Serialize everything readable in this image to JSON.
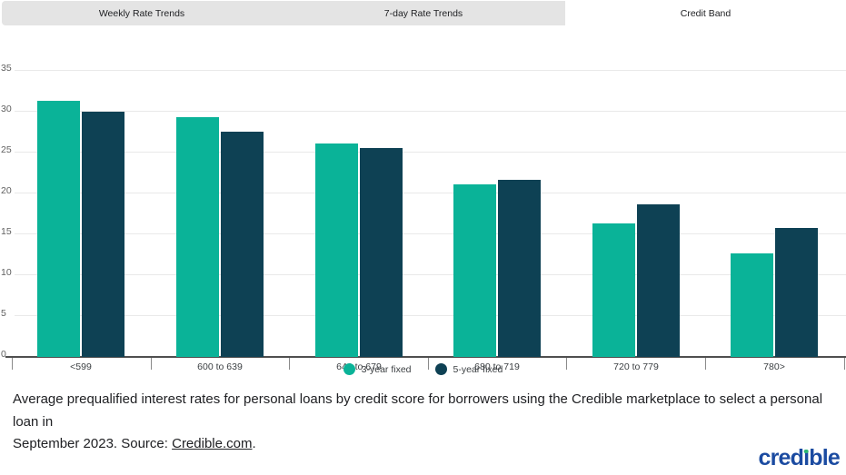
{
  "tab_bar": {
    "tabs": [
      {
        "label": "Weekly Rate Trends",
        "active": false
      },
      {
        "label": "7-day Rate Trends",
        "active": false
      },
      {
        "label": "Credit Band",
        "active": true
      }
    ]
  },
  "chart_data": {
    "type": "bar",
    "title": "",
    "categories": [
      "<599",
      "600 to 639",
      "640 to 679",
      "680 to 719",
      "720 to 779",
      "780>"
    ],
    "series": [
      {
        "name": "3-year fixed",
        "color": "#0ab398",
        "values": [
          31.3,
          29.3,
          26.1,
          21.1,
          16.3,
          12.7
        ]
      },
      {
        "name": "5-year fixed",
        "color": "#0e4154",
        "values": [
          30.0,
          27.6,
          25.5,
          21.7,
          18.7,
          15.8
        ]
      }
    ],
    "xlabel": "",
    "ylabel": "",
    "ylim": [
      0,
      35
    ],
    "yticks": [
      0,
      5,
      10,
      15,
      20,
      25,
      30,
      35
    ],
    "grid": true,
    "legend_position": "bottom"
  },
  "caption": {
    "line1": "Average prequalified interest rates for personal loans by credit score for borrowers using the Credible marketplace to select a personal loan in",
    "line2_prefix": "September 2023. Source: ",
    "link_text": "Credible.com",
    "suffix": "."
  },
  "logo": {
    "pre": "cred",
    "i": "ı",
    "post": "ble"
  },
  "colors": {
    "series_3yr": "#0ab398",
    "series_5yr": "#0e4154",
    "tab_inactive_bg": "#e4e4e4",
    "gridline": "#e9e9e9",
    "axis": "#4f4f4f",
    "logo_blue": "#1b4ba1",
    "logo_dot_green": "#2bb673"
  }
}
